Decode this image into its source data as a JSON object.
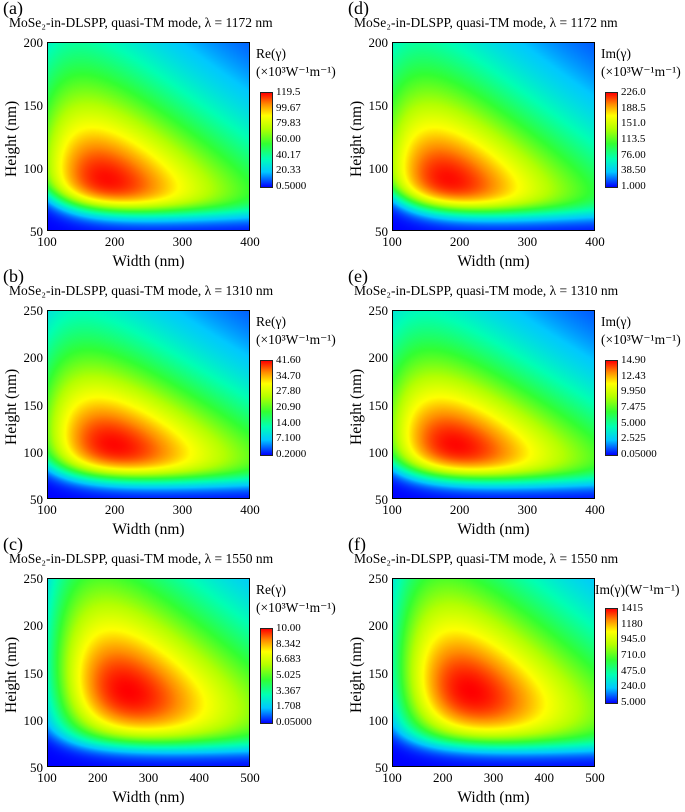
{
  "chart_data": [
    {
      "type": "heatmap",
      "panel_label": "(a)",
      "title": "MoSe₂-in-DLSPP, quasi-TM mode, λ = 1172 nm",
      "quantity": "Re",
      "xlabel": "Width (nm)",
      "ylabel": "Height (nm)",
      "xlim": [
        100,
        400
      ],
      "ylim": [
        50,
        200
      ],
      "xticks": [
        "100",
        "200",
        "300",
        "400"
      ],
      "yticks": [
        "50",
        "100",
        "150",
        "200"
      ],
      "colorbar_title": [
        "Re(γ)",
        "(×10³W⁻¹m⁻¹)"
      ],
      "colorbar_ticks": [
        "119.5",
        "99.67",
        "79.83",
        "60.00",
        "40.17",
        "20.33",
        "0.5000"
      ],
      "peak": {
        "width": 190,
        "height": 88
      }
    },
    {
      "type": "heatmap",
      "panel_label": "(d)",
      "title": "MoSe₂-in-DLSPP, quasi-TM mode, λ = 1172 nm",
      "quantity": "Im",
      "xlabel": "Width (nm)",
      "ylabel": "Height (nm)",
      "xlim": [
        100,
        400
      ],
      "ylim": [
        50,
        200
      ],
      "xticks": [
        "100",
        "200",
        "300",
        "400"
      ],
      "yticks": [
        "50",
        "100",
        "150",
        "200"
      ],
      "colorbar_title": [
        "Im(γ)",
        "(×10³W⁻¹m⁻¹)"
      ],
      "colorbar_ticks": [
        "226.0",
        "188.5",
        "151.0",
        "113.5",
        "76.00",
        "38.50",
        "1.000"
      ],
      "peak": {
        "width": 185,
        "height": 88
      }
    },
    {
      "type": "heatmap",
      "panel_label": "(b)",
      "title": "MoSe₂-in-DLSPP, quasi-TM mode, λ = 1310 nm",
      "quantity": "Re",
      "xlabel": "Width (nm)",
      "ylabel": "Height (nm)",
      "xlim": [
        100,
        400
      ],
      "ylim": [
        50,
        250
      ],
      "xticks": [
        "100",
        "200",
        "300",
        "400"
      ],
      "yticks": [
        "50",
        "100",
        "150",
        "200",
        "250"
      ],
      "colorbar_title": [
        "Re(γ)",
        "(×10³W⁻¹m⁻¹)"
      ],
      "colorbar_ticks": [
        "41.60",
        "34.70",
        "27.80",
        "20.90",
        "14.00",
        "7.100",
        "0.2000"
      ],
      "peak": {
        "width": 200,
        "height": 105
      }
    },
    {
      "type": "heatmap",
      "panel_label": "(e)",
      "title": "MoSe₂-in-DLSPP, quasi-TM mode, λ = 1310 nm",
      "quantity": "Im",
      "xlabel": "Width (nm)",
      "ylabel": "Height (nm)",
      "xlim": [
        100,
        400
      ],
      "ylim": [
        50,
        250
      ],
      "xticks": [
        "100",
        "200",
        "300",
        "400"
      ],
      "yticks": [
        "50",
        "100",
        "150",
        "200",
        "250"
      ],
      "colorbar_title": [
        "Im(γ)",
        "(×10³W⁻¹m⁻¹)"
      ],
      "colorbar_ticks": [
        "14.90",
        "12.43",
        "9.950",
        "7.475",
        "5.000",
        "2.525",
        "0.05000"
      ],
      "peak": {
        "width": 195,
        "height": 105
      }
    },
    {
      "type": "heatmap",
      "panel_label": "(c)",
      "title": "MoSe₂-in-DLSPP, quasi-TM mode, λ = 1550 nm",
      "quantity": "Re",
      "xlabel": "Width (nm)",
      "ylabel": "Height (nm)",
      "xlim": [
        100,
        500
      ],
      "ylim": [
        50,
        250
      ],
      "xticks": [
        "100",
        "200",
        "300",
        "400",
        "500"
      ],
      "yticks": [
        "50",
        "100",
        "150",
        "200",
        "250"
      ],
      "colorbar_title": [
        "Re(γ)",
        "(×10³W⁻¹m⁻¹)"
      ],
      "colorbar_ticks": [
        "10.00",
        "8.342",
        "6.683",
        "5.025",
        "3.367",
        "1.708",
        "0.05000"
      ],
      "peak": {
        "width": 260,
        "height": 130
      }
    },
    {
      "type": "heatmap",
      "panel_label": "(f)",
      "title": "MoSe₂-in-DLSPP, quasi-TM mode, λ = 1550 nm",
      "quantity": "Im",
      "xlabel": "Width (nm)",
      "ylabel": "Height (nm)",
      "xlim": [
        100,
        500
      ],
      "ylim": [
        50,
        250
      ],
      "xticks": [
        "100",
        "200",
        "300",
        "400",
        "500"
      ],
      "yticks": [
        "50",
        "100",
        "150",
        "200",
        "250"
      ],
      "colorbar_title": [
        "Im(γ)(W⁻¹m⁻¹)"
      ],
      "colorbar_ticks": [
        "1415",
        "1180",
        "945.0",
        "710.0",
        "475.0",
        "240.0",
        "5.000"
      ],
      "peak": {
        "width": 255,
        "height": 130
      }
    }
  ]
}
